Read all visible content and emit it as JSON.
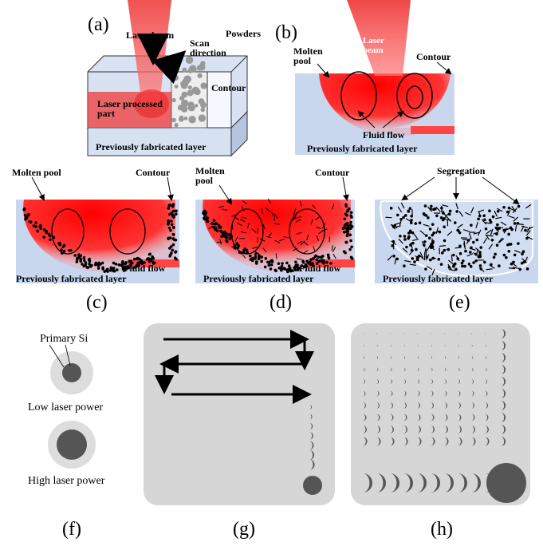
{
  "panels": [
    {
      "label": "(a)",
      "texts": [
        "Laser beam",
        "Scan direction",
        "Powders",
        "Contour",
        "Laser processed part",
        "Previously fabricated layer"
      ]
    },
    {
      "label": "(b)",
      "texts": [
        "Laser beam",
        "Molten pool",
        "Contour",
        "Fluid flow",
        "Previously fabricated layer"
      ]
    },
    {
      "label": "(c)",
      "texts": [
        "Molten pool",
        "Contour",
        "Fluid flow",
        "Previously fabricated layer"
      ]
    },
    {
      "label": "(d)",
      "texts": [
        "Molten pool",
        "Contour",
        "Fluid flow",
        "Previously fabricated layer"
      ]
    },
    {
      "label": "(e)",
      "texts": [
        "Segregation",
        "Previously fabricated layer"
      ]
    },
    {
      "label": "(f)",
      "texts": [
        "Primary Si",
        "Low laser power",
        "High laser power"
      ]
    },
    {
      "label": "(g)",
      "texts": []
    },
    {
      "label": "(h)",
      "texts": []
    }
  ]
}
